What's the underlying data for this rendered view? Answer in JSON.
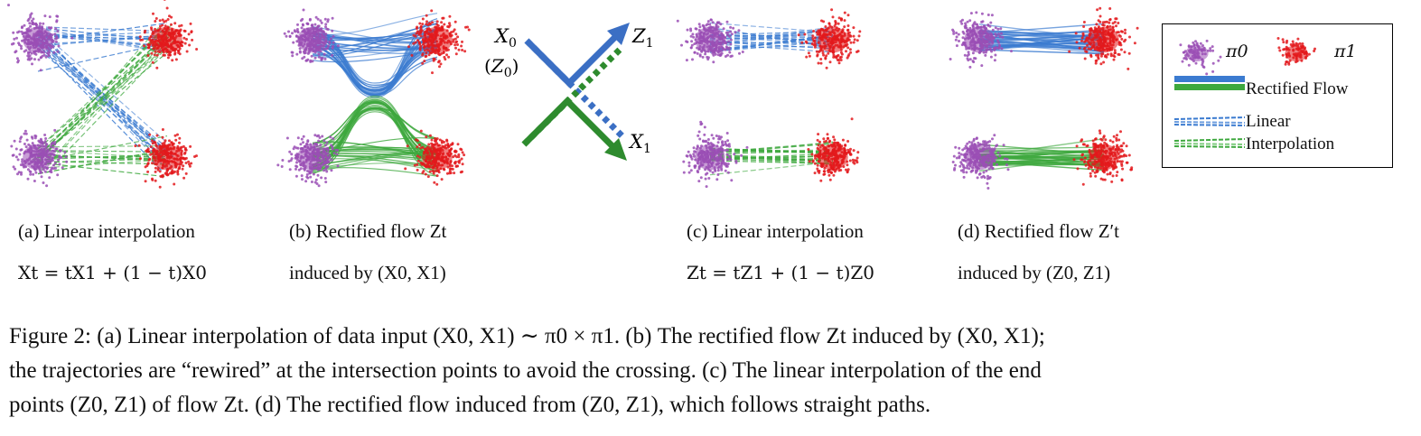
{
  "colors": {
    "blue": "#3b7bd0",
    "green": "#3ea83e",
    "dark_green": "#2e8b2e",
    "purple": "#9a4fb5",
    "red": "#e3191c"
  },
  "arrow_labels": {
    "x0": "X0",
    "z0": "(Z0)",
    "z1": "Z1",
    "x1": "X1"
  },
  "legend": {
    "pi0": "π0",
    "pi1": "π1",
    "rectified_flow": "Rectified Flow",
    "linear_line1": "Linear",
    "linear_line2": "Interpolation"
  },
  "subcaptions": {
    "a": {
      "label": "(a) Linear interpolation",
      "formula": "Xt = tX1 + (1 − t)X0"
    },
    "b": {
      "label": "(b) Rectified flow Zt",
      "formula": "induced by (X0, X1)"
    },
    "c": {
      "label": "(c) Linear interpolation",
      "formula": "Zt = tZ1 + (1 − t)Z0"
    },
    "d": {
      "label": "(d) Rectified flow Z′t",
      "formula": "induced by (Z0, Z1)"
    }
  },
  "caption": {
    "line1": "Figure 2: (a) Linear interpolation of data input (X0, X1) ∼ π0 × π1. (b) The rectified flow Zt induced by (X0, X1);",
    "line2": "the trajectories are “rewired” at the intersection points to avoid the crossing.  (c) The linear interpolation of the end",
    "line3": "points (Z0, Z1) of flow Zt. (d) The rectified flow induced from (Z0, Z1), which follows straight paths."
  }
}
